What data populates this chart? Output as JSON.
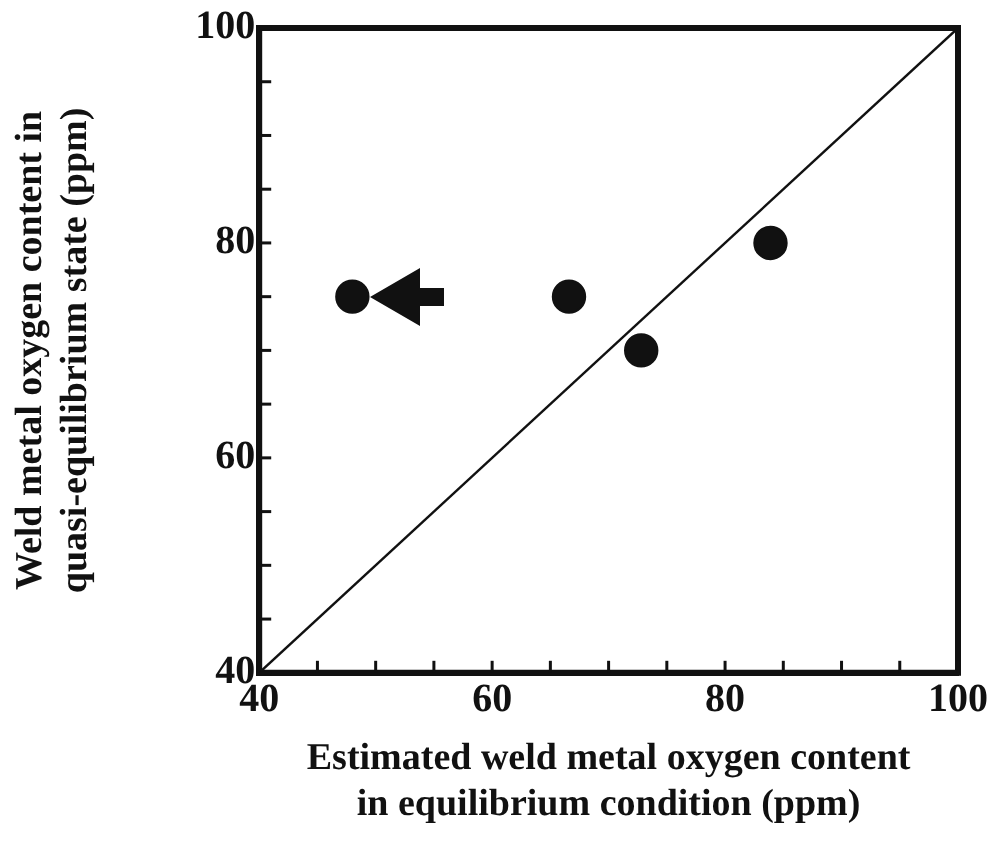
{
  "chart_data": {
    "type": "scatter",
    "xlabel": "Estimated weld metal oxygen content in equilibrium condition (ppm)",
    "ylabel": "Weld metal oxygen content in quasi-equilibrium state (ppm)",
    "xlim": [
      40,
      100
    ],
    "ylim": [
      40,
      100
    ],
    "xticks": [
      40,
      {
        "value": 45,
        "label": null
      },
      {
        "value": 50,
        "label": null
      },
      {
        "value": 55,
        "label": null
      },
      60,
      {
        "value": 65,
        "label": null
      },
      {
        "value": 70,
        "label": null
      },
      {
        "value": 75,
        "label": null
      },
      80,
      {
        "value": 85,
        "label": null
      },
      {
        "value": 90,
        "label": null
      },
      {
        "value": 95,
        "label": null
      },
      100
    ],
    "yticks": [
      40,
      {
        "value": 45,
        "label": null
      },
      {
        "value": 50,
        "label": null
      },
      {
        "value": 55,
        "label": null
      },
      60,
      {
        "value": 65,
        "label": null
      },
      {
        "value": 70,
        "label": null
      },
      {
        "value": 75,
        "label": null
      },
      80,
      {
        "value": 85,
        "label": null
      },
      {
        "value": 90,
        "label": null
      },
      {
        "value": 95,
        "label": null
      },
      100
    ],
    "grid": false,
    "legend": false,
    "marker": "circle",
    "series": [
      {
        "color": "#111111",
        "x": [
          48,
          66.6,
          72.8,
          83.9
        ],
        "values": [
          75,
          75,
          70,
          80
        ]
      },
      {
        "type": "line",
        "color": "#111111",
        "x": [
          40,
          100
        ],
        "values": [
          40,
          100
        ],
        "marker": "none",
        "line_style": "solid"
      }
    ]
  }
}
